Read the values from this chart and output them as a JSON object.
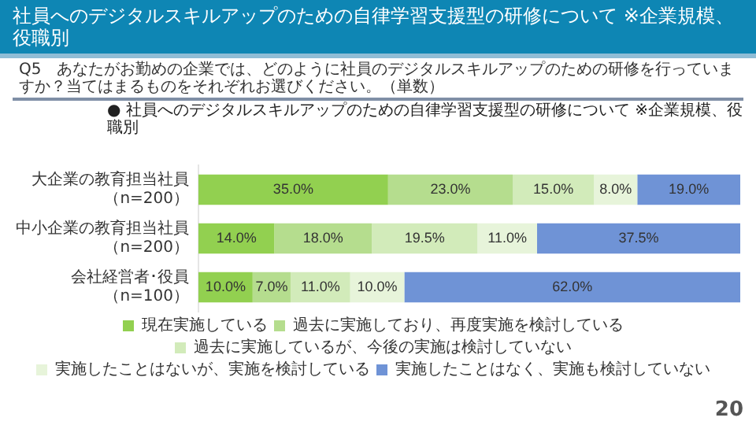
{
  "chart_data": {
    "type": "bar",
    "orientation": "horizontal",
    "stacked": true,
    "title": "社員へのデジタルスキルアップのための自律学習支援型の研修について ※企業規模、役職別",
    "subtitle": "Q5　あなたがお勤めの企業では、どのように社員のデジタルスキルアップのための研修を行っていますか？当てはまるものをそれぞれお選びください。（単数）",
    "annotations": [
      "● 社員へのデジタルスキルアップのための自律学習支援型の研修について ※企業規模、役職別",
      "20"
    ],
    "categories": [
      "大企業の教育担当社員（n=200）",
      "中小企業の教育担当社員（n=200）",
      "会社経営者･役員（n=100）"
    ],
    "series": [
      {
        "name": "現在実施している",
        "color": "#92d050",
        "values": [
          35,
          14,
          10
        ],
        "value_labels": [
          "35.0%",
          "14.0%",
          "10.0%"
        ]
      },
      {
        "name": "過去に実施しており、再度実施を検討している",
        "color": "#b5dd8e",
        "values": [
          23,
          18,
          7
        ],
        "value_labels": [
          "23.0%",
          "18.0%",
          "7.0%"
        ]
      },
      {
        "name": "過去に実施しているが、今後の実施は検討していない",
        "color": "#d2ebba",
        "values": [
          15,
          19.5,
          11
        ],
        "value_labels": [
          "15.0%",
          "19.5%",
          "11.0%"
        ]
      },
      {
        "name": "実施したことはないが、実施を検討している",
        "color": "#e7f4da",
        "values": [
          8,
          11,
          10
        ],
        "value_labels": [
          "8.0%",
          "11.0%",
          "10.0%"
        ]
      },
      {
        "name": "実施したことはなく、実施も検討していない",
        "color": "#6f93d6",
        "values": [
          19,
          37.5,
          62
        ],
        "value_labels": [
          "19.0%",
          "37.5%",
          "62.0%"
        ]
      }
    ],
    "xlim": [
      0,
      100
    ],
    "grid": false,
    "legend": "bottom",
    "tick_labels": "y"
  }
}
